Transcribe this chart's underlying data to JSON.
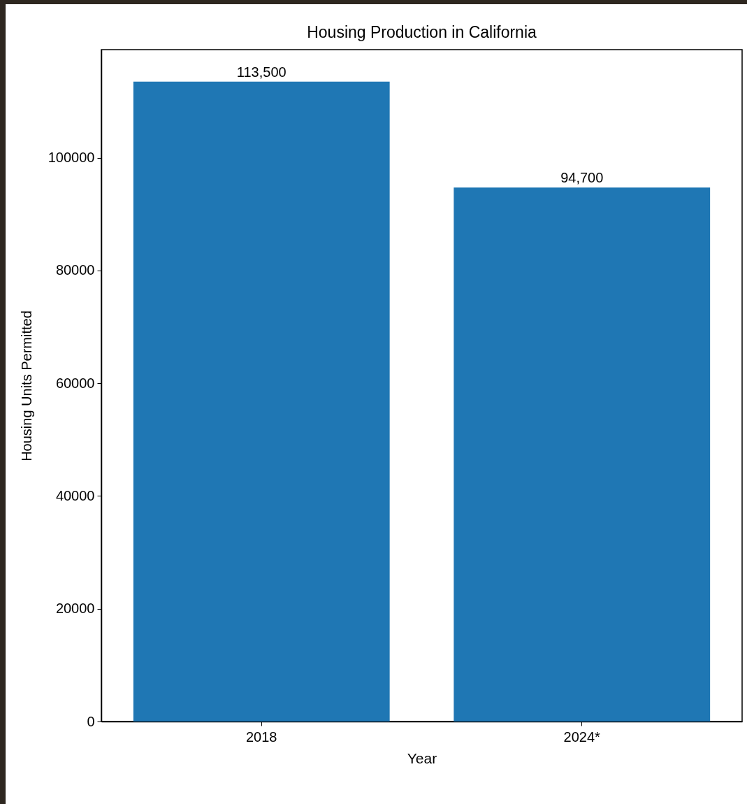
{
  "chart_data": {
    "type": "bar",
    "title": "Housing Production in California",
    "xlabel": "Year",
    "ylabel": "Housing Units Permitted",
    "categories": [
      "2018",
      "2024*"
    ],
    "values": [
      113500,
      94700
    ],
    "value_labels": [
      "113,500",
      "94,700"
    ],
    "color": "#1f77b4",
    "ylim": [
      0,
      119175
    ],
    "yticks": [
      0,
      20000,
      40000,
      60000,
      80000,
      100000
    ],
    "grid": false
  }
}
